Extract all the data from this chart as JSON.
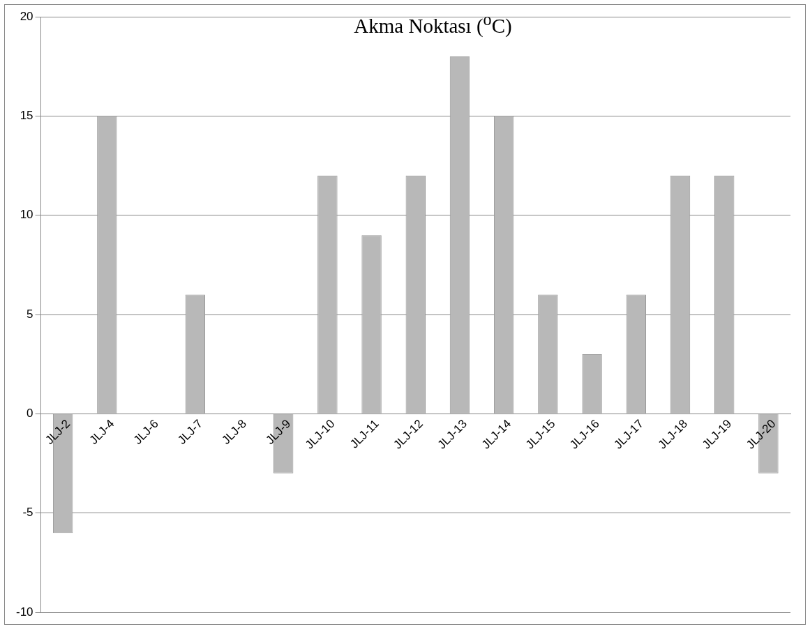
{
  "chart_data": {
    "type": "bar",
    "title": "Akma Noktası ($^{o}$C)",
    "categories": [
      "JLJ-2",
      "JLJ-4",
      "JLJ-6",
      "JLJ-7",
      "JLJ-8",
      "JLJ-9",
      "JLJ-10",
      "JLJ-11",
      "JLJ-12",
      "JLJ-13",
      "JLJ-14",
      "JLJ-15",
      "JLJ-16",
      "JLJ-17",
      "JLJ-18",
      "JLJ-19",
      "JLJ-20"
    ],
    "values": [
      -6,
      15,
      0,
      6,
      0,
      -3,
      12,
      9,
      12,
      18,
      15,
      6,
      3,
      6,
      12,
      12,
      -3
    ],
    "color": "#b8b8b8",
    "ylim": [
      -10,
      20
    ],
    "yticks": [
      -10,
      -5,
      0,
      5,
      10,
      15,
      20
    ],
    "grid": "y"
  }
}
